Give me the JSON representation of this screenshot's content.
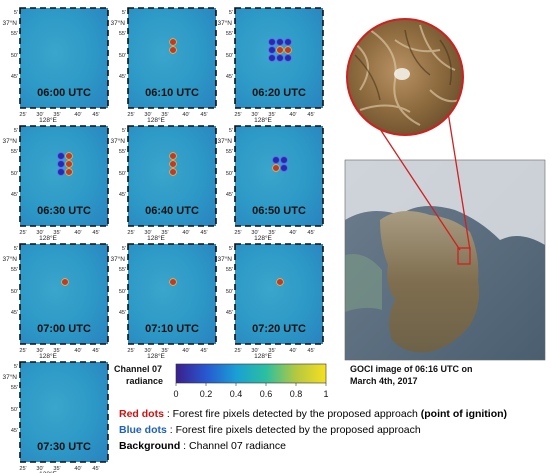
{
  "panels": [
    {
      "time": "06:00 UTC",
      "dots": []
    },
    {
      "time": "06:10 UTC",
      "dots": [
        "red",
        "red"
      ]
    },
    {
      "time": "06:20 UTC",
      "dots": [
        "blue",
        "blue",
        "blue",
        "blue",
        "red",
        "red",
        "blue",
        "blue",
        "blue"
      ]
    },
    {
      "time": "06:30 UTC",
      "dots": [
        "blue",
        "red",
        "blue",
        "red",
        "blue",
        "red"
      ]
    },
    {
      "time": "06:40 UTC",
      "dots": [
        "red",
        "red",
        "red"
      ]
    },
    {
      "time": "06:50 UTC",
      "dots": [
        "blue",
        "blue",
        "red",
        "blue"
      ]
    },
    {
      "time": "07:00 UTC",
      "dots": [
        "red"
      ]
    },
    {
      "time": "07:10 UTC",
      "dots": [
        "red"
      ]
    },
    {
      "time": "07:20 UTC",
      "dots": [
        "red"
      ]
    },
    {
      "time": "07:30 UTC",
      "dots": []
    }
  ],
  "axis": {
    "lat_label": "37°N",
    "lon_label": "128°E",
    "lat_ticks": [
      "5'",
      "55'",
      "50'",
      "45'"
    ],
    "lon_ticks": [
      "25'",
      "30'",
      "35'",
      "40'",
      "45'"
    ]
  },
  "colorbar": {
    "label_line1": "Channel 07",
    "label_line2": "radiance",
    "ticks": [
      "0",
      "0.2",
      "0.4",
      "0.6",
      "0.8",
      "1"
    ]
  },
  "goci": {
    "caption_line1": "GOCI image of 06:16 UTC on",
    "caption_line2": "March 4th, 2017"
  },
  "legend": {
    "red_key": "Red dots",
    "red_text": " : Forest fire pixels detected by the proposed approach ",
    "red_emph": "(point of ignition)",
    "blue_key": "Blue dots",
    "blue_text": " : Forest fire pixels detected by the proposed approach",
    "bg_key": "Background",
    "bg_text": " : Channel 07 radiance"
  },
  "colors": {
    "red_dot": "#c0392b",
    "blue_dot": "#2a2aa8",
    "red_text": "#d01010",
    "blue_text": "#2060c0",
    "field": "#2f9ec8",
    "pointer": "#d02020"
  }
}
